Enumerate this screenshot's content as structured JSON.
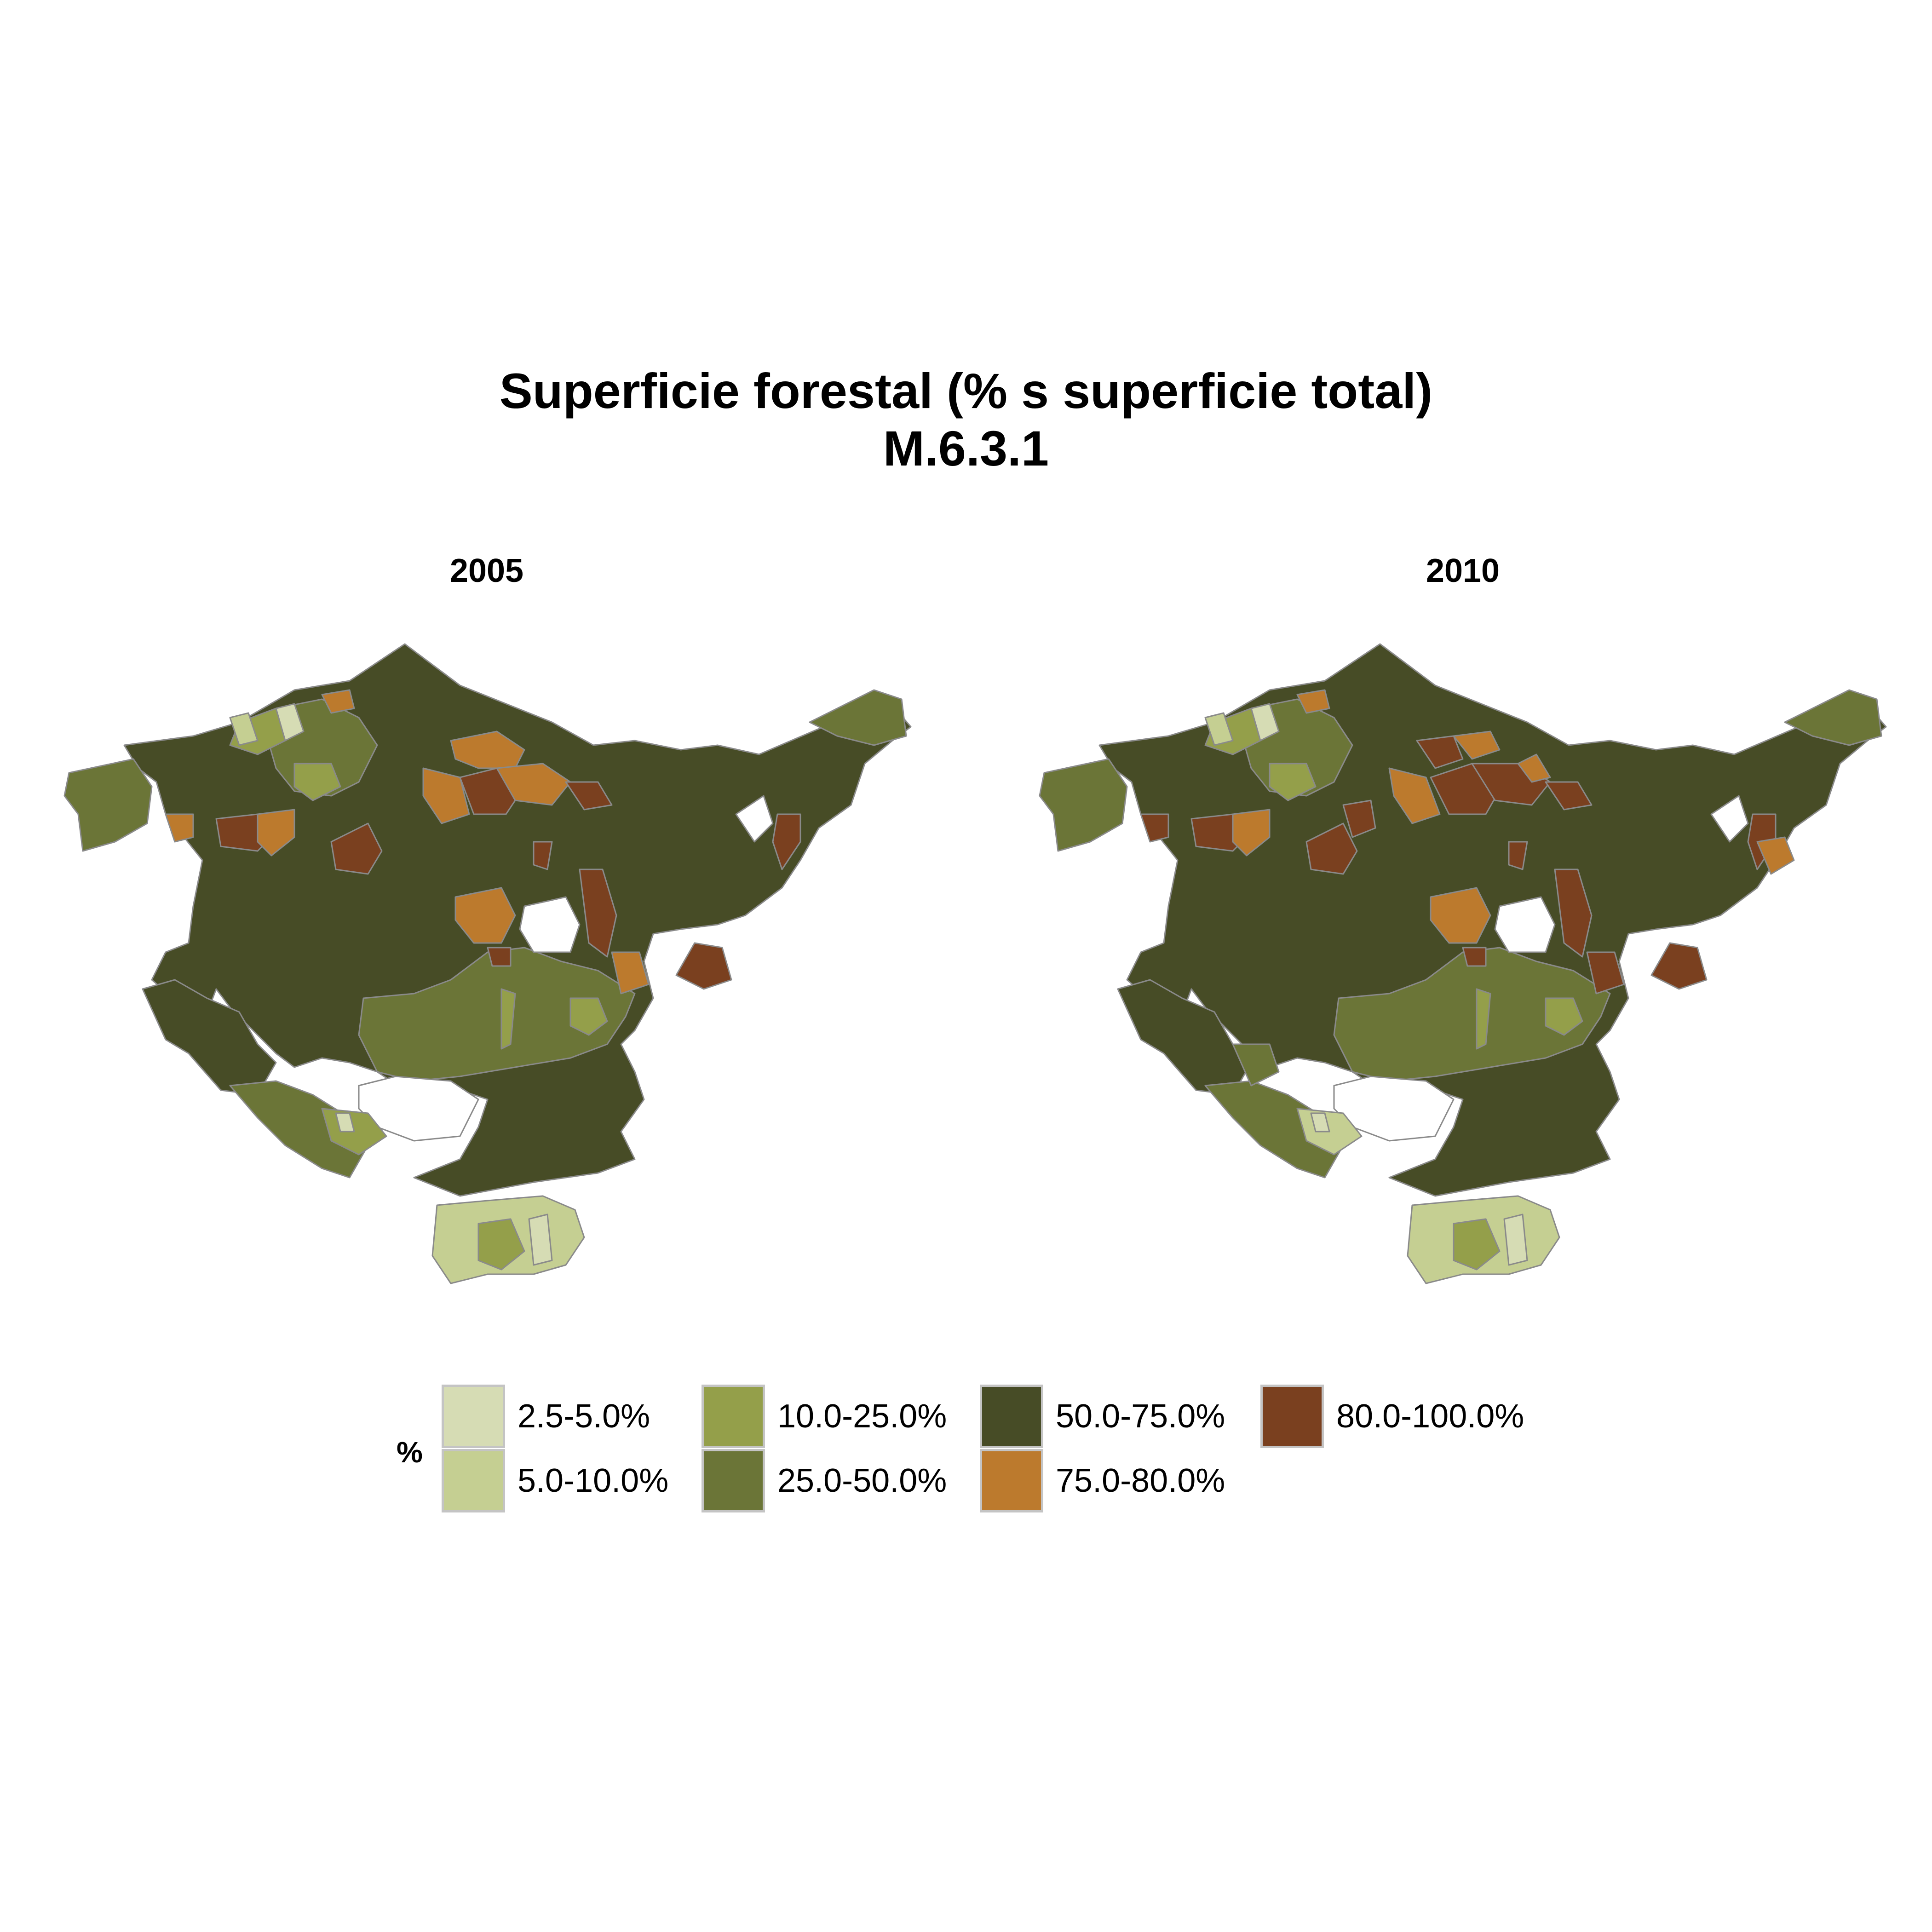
{
  "title_line1": "Superficie forestal (% s  superficie total)",
  "title_line2": "M.6.3.1",
  "panels": [
    {
      "label": "2005"
    },
    {
      "label": "2010"
    }
  ],
  "legend": {
    "title": "%",
    "items": [
      {
        "label": "2.5-5.0%",
        "color": "#d6dcb4"
      },
      {
        "label": "5.0-10.0%",
        "color": "#c5cf92"
      },
      {
        "label": "10.0-25.0%",
        "color": "#949f4a"
      },
      {
        "label": "25.0-50.0%",
        "color": "#6b7537"
      },
      {
        "label": "50.0-75.0%",
        "color": "#474c26"
      },
      {
        "label": "75.0-80.0%",
        "color": "#bc7a2d"
      },
      {
        "label": "80.0-100.0%",
        "color": "#7a401f"
      }
    ]
  },
  "colors": {
    "border": "#8a8a8a",
    "background": "#ffffff"
  }
}
